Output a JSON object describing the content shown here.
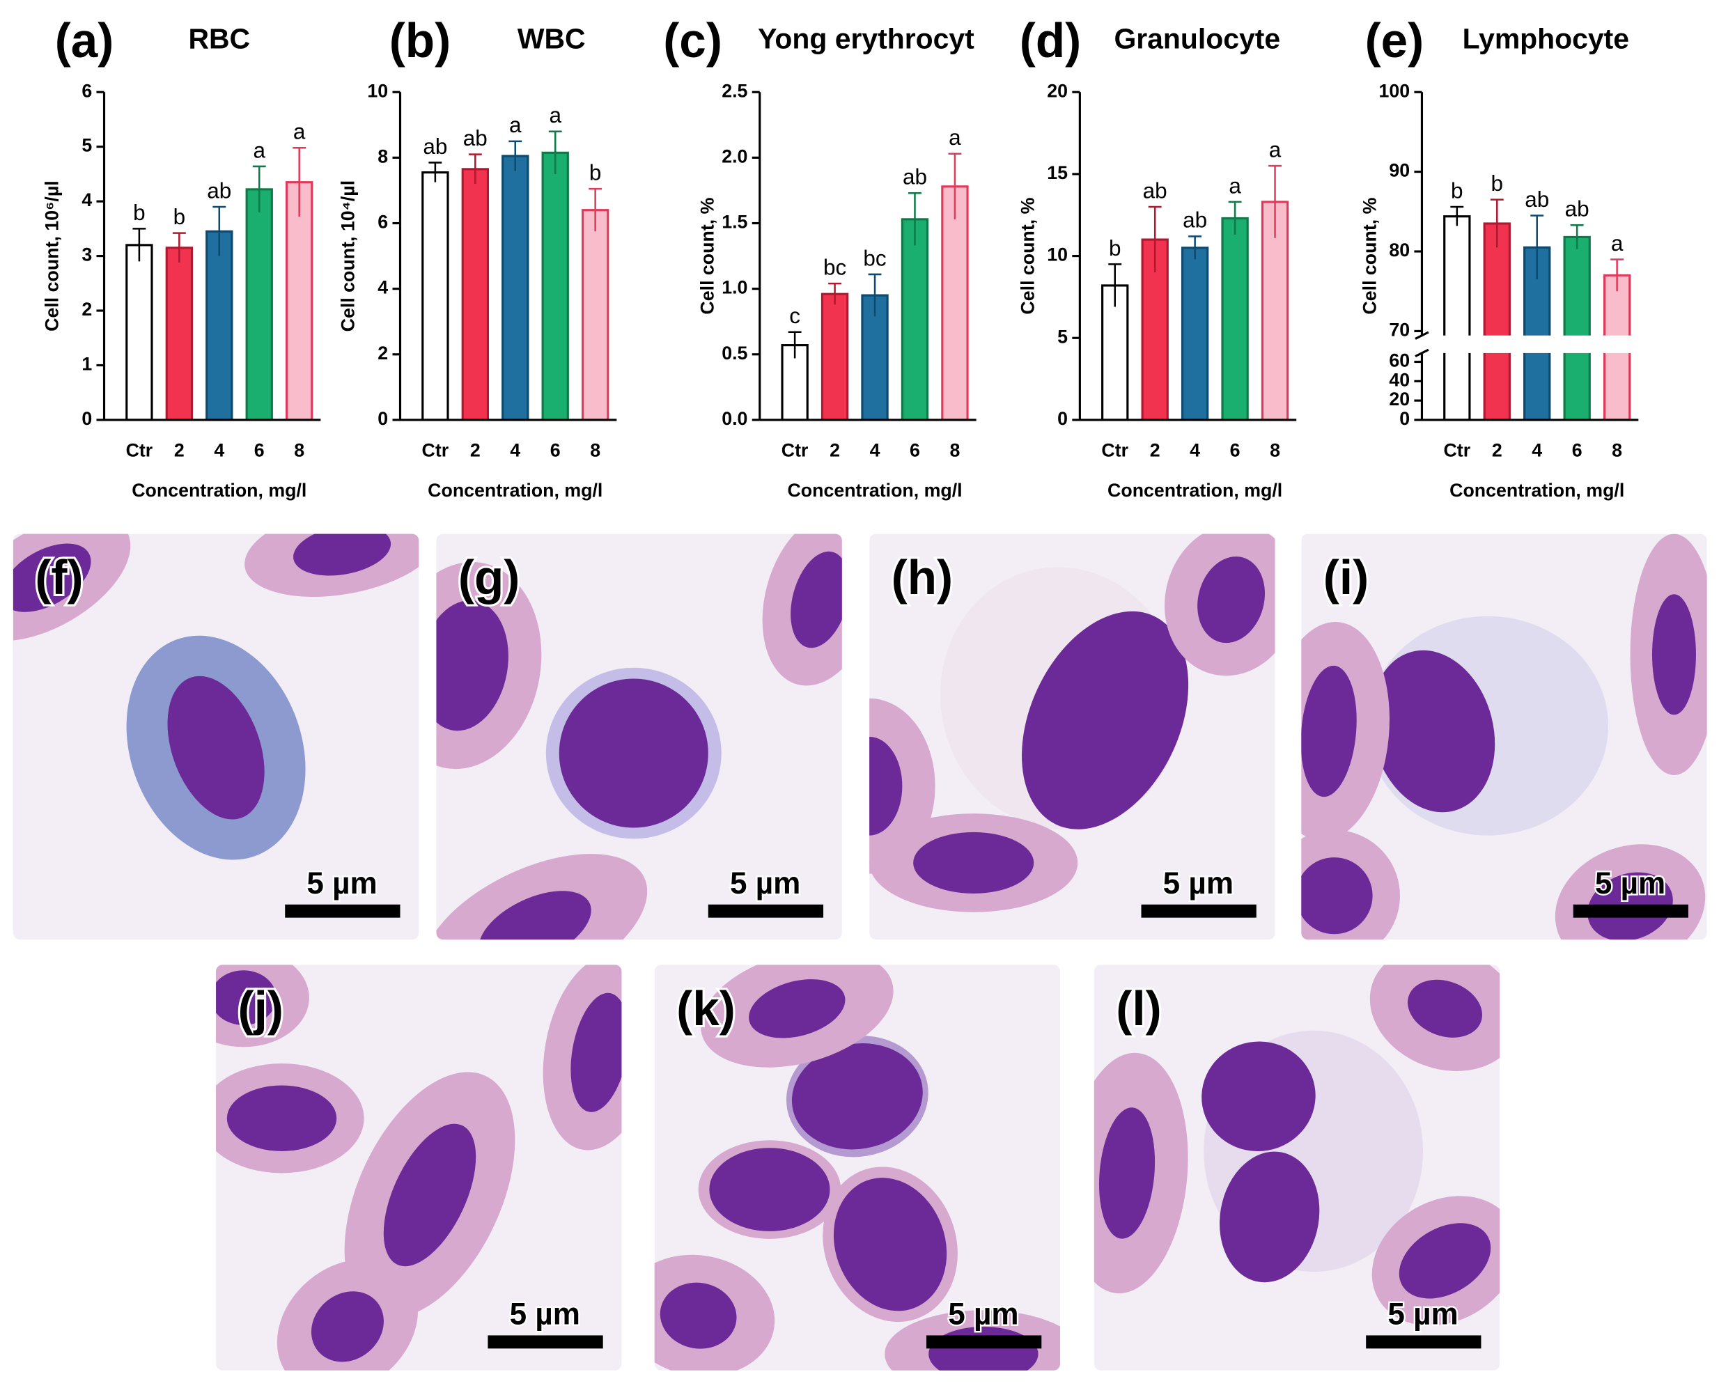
{
  "chart_data": [
    {
      "type": "bar",
      "panel_label": "(a)",
      "title": "RBC",
      "y_label": "Cell count, 10⁶/µl",
      "x_label": "Concentration, mg/l",
      "categories": [
        "Ctr",
        "2",
        "4",
        "6",
        "8"
      ],
      "values": [
        3.2,
        3.15,
        3.45,
        4.22,
        4.35
      ],
      "errors": [
        0.3,
        0.27,
        0.45,
        0.42,
        0.63
      ],
      "annotations": [
        "b",
        "b",
        "ab",
        "a",
        "a"
      ],
      "colors": [
        "#ffffff",
        "#f2334f",
        "#1f6f9f",
        "#1aae6f",
        "#f9bccb"
      ],
      "edge_colors": [
        "#000000",
        "#b01830",
        "#0d4a70",
        "#0d7a48",
        "#e03a5a"
      ],
      "ylim": [
        0,
        6
      ],
      "yticks": [
        0,
        1,
        2,
        3,
        4,
        5,
        6
      ]
    },
    {
      "type": "bar",
      "panel_label": "(b)",
      "title": "WBC",
      "y_label": "Cell count, 10⁴/µl",
      "x_label": "Concentration, mg/l",
      "categories": [
        "Ctr",
        "2",
        "4",
        "6",
        "8"
      ],
      "values": [
        7.55,
        7.65,
        8.05,
        8.15,
        6.4
      ],
      "errors": [
        0.3,
        0.45,
        0.45,
        0.65,
        0.65
      ],
      "annotations": [
        "ab",
        "ab",
        "a",
        "a",
        "b"
      ],
      "colors": [
        "#ffffff",
        "#f2334f",
        "#1f6f9f",
        "#1aae6f",
        "#f9bccb"
      ],
      "edge_colors": [
        "#000000",
        "#b01830",
        "#0d4a70",
        "#0d7a48",
        "#e03a5a"
      ],
      "ylim": [
        0,
        10
      ],
      "yticks": [
        0,
        2,
        4,
        6,
        8,
        10
      ]
    },
    {
      "type": "bar",
      "panel_label": "(c)",
      "title": "Yong erythrocyt",
      "y_label": "Cell count, %",
      "x_label": "Concentration, mg/l",
      "categories": [
        "Ctr",
        "2",
        "4",
        "6",
        "8"
      ],
      "values": [
        0.57,
        0.96,
        0.95,
        1.53,
        1.78
      ],
      "errors": [
        0.1,
        0.08,
        0.16,
        0.2,
        0.25
      ],
      "annotations": [
        "c",
        "bc",
        "bc",
        "ab",
        "a"
      ],
      "colors": [
        "#ffffff",
        "#f2334f",
        "#1f6f9f",
        "#1aae6f",
        "#f9bccb"
      ],
      "edge_colors": [
        "#000000",
        "#b01830",
        "#0d4a70",
        "#0d7a48",
        "#e03a5a"
      ],
      "ylim": [
        0,
        2.5
      ],
      "yticks": [
        {
          "value": 0,
          "label": "0.0"
        },
        0.5,
        {
          "value": 1,
          "label": "1.0"
        },
        1.5,
        {
          "value": 2,
          "label": "2.0"
        },
        2.5
      ]
    },
    {
      "type": "bar",
      "panel_label": "(d)",
      "title": "Granulocyte",
      "y_label": "Cell count, %",
      "x_label": "Concentration, mg/l",
      "categories": [
        "Ctr",
        "2",
        "4",
        "6",
        "8"
      ],
      "values": [
        8.2,
        11.0,
        10.5,
        12.3,
        13.3
      ],
      "errors": [
        1.3,
        2.0,
        0.7,
        1.0,
        2.2
      ],
      "annotations": [
        "b",
        "ab",
        "ab",
        "a",
        "a"
      ],
      "colors": [
        "#ffffff",
        "#f2334f",
        "#1f6f9f",
        "#1aae6f",
        "#f9bccb"
      ],
      "edge_colors": [
        "#000000",
        "#b01830",
        "#0d4a70",
        "#0d7a48",
        "#e03a5a"
      ],
      "ylim": [
        0,
        20
      ],
      "yticks": [
        0,
        5,
        10,
        15,
        20
      ]
    },
    {
      "type": "bar",
      "panel_label": "(e)",
      "title": "Lymphocyte",
      "y_label": "Cell count, %",
      "x_label": "Concentration, mg/l",
      "categories": [
        "Ctr",
        "2",
        "4",
        "6",
        "8"
      ],
      "values": [
        84.4,
        83.5,
        80.5,
        81.8,
        77
      ],
      "errors": [
        1.2,
        3,
        4,
        1.5,
        2
      ],
      "annotations": [
        "b",
        "b",
        "ab",
        "ab",
        "a"
      ],
      "colors": [
        "#ffffff",
        "#f2334f",
        "#1f6f9f",
        "#1aae6f",
        "#f9bccb"
      ],
      "edge_colors": [
        "#000000",
        "#b01830",
        "#0d4a70",
        "#0d7a48",
        "#e03a5a"
      ],
      "ylim": [
        0,
        100
      ],
      "ybreak": [
        60,
        70
      ],
      "yticks": [
        0,
        20,
        40,
        60,
        70,
        80,
        90,
        100
      ]
    }
  ],
  "micrographs": [
    {
      "label": "(f)",
      "scale_bar": "5 µm"
    },
    {
      "label": "(g)",
      "scale_bar": "5 µm"
    },
    {
      "label": "(h)",
      "scale_bar": "5 µm"
    },
    {
      "label": "(i)",
      "scale_bar": "5 µm"
    },
    {
      "label": "(j)",
      "scale_bar": "5 µm"
    },
    {
      "label": "(k)",
      "scale_bar": "5 µm"
    },
    {
      "label": "(l)",
      "scale_bar": "5 µm"
    }
  ]
}
